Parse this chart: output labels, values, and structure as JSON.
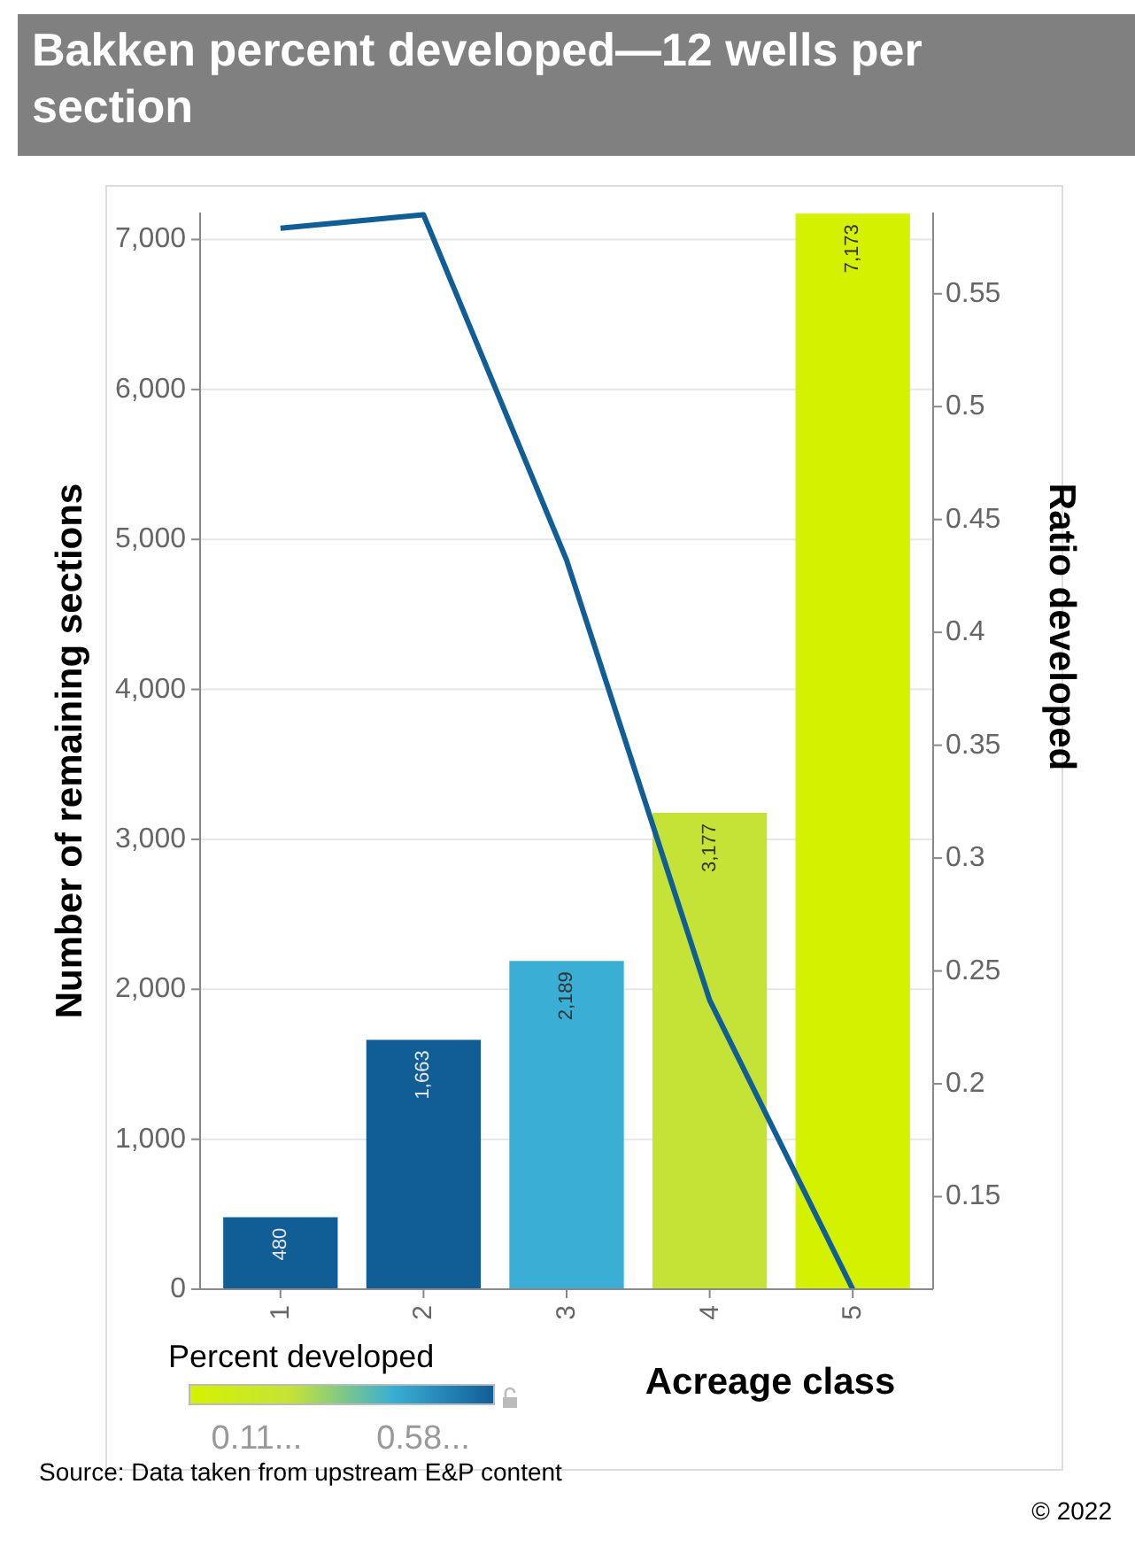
{
  "chart_data": {
    "type": "bar",
    "title": "Bakken percent developed—12 wells per section",
    "xlabel": "Acreage class",
    "ylabel": "Number of remaining sections",
    "y2label": "Ratio developed",
    "categories": [
      "1",
      "2",
      "3",
      "4",
      "5"
    ],
    "series": [
      {
        "colors": [
          "#115e96",
          "#115e96",
          "#3aaed4",
          "#c5e336",
          "#d4f200"
        ],
        "values": [
          480,
          1663,
          2189,
          3177,
          7173
        ],
        "value_labels": [
          "480",
          "1,663",
          "2,189",
          "3,177",
          "7,173"
        ]
      },
      {
        "type": "line",
        "axis": "y2",
        "color": "#115e96",
        "values": [
          0.579,
          0.585,
          0.432,
          0.237,
          0.109
        ]
      }
    ],
    "ylim": [
      0,
      7180
    ],
    "yticks": [
      {
        "value": 0,
        "label": "0"
      },
      {
        "value": 1000,
        "label": "1,000"
      },
      {
        "value": 2000,
        "label": "2,000"
      },
      {
        "value": 3000,
        "label": "3,000"
      },
      {
        "value": 4000,
        "label": "4,000"
      },
      {
        "value": 5000,
        "label": "5,000"
      },
      {
        "value": 6000,
        "label": "6,000"
      },
      {
        "value": 7000,
        "label": "7,000"
      }
    ],
    "y2lim": [
      0.109,
      0.586
    ],
    "y2ticks": [
      0.15,
      0.2,
      0.25,
      0.3,
      0.35,
      0.4,
      0.45,
      0.5,
      0.55
    ],
    "grid": "y",
    "clabel": "Percent developed",
    "clim": [
      0.109,
      0.586
    ],
    "cticks": [
      {
        "value": 0.109,
        "label": "0.11..."
      },
      {
        "value": 0.586,
        "label": "0.58..."
      }
    ],
    "annotations": [
      "Source: Data taken from upstream E&P content",
      "© 2022"
    ]
  }
}
